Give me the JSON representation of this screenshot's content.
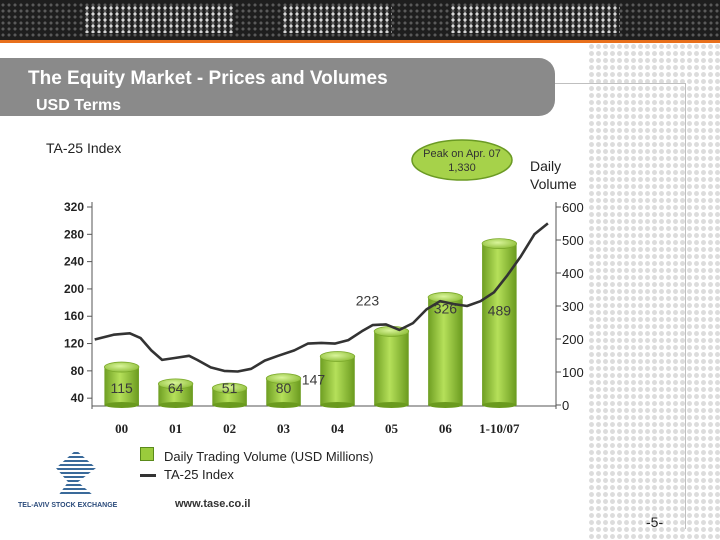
{
  "page": {
    "title": "The Equity Market - Prices and Volumes",
    "subtitle": "USD Terms",
    "website": "www.tase.co.il",
    "page_number": "-5-",
    "logo_text": "TEL-AVIV STOCK EXCHANGE"
  },
  "colors": {
    "bar": "#9acb3c",
    "line": "#333333",
    "title_bar": "#8a8a8a",
    "accent": "#e8701c"
  },
  "chart_data": {
    "type": "bar",
    "title": "The Equity Market - Prices and Volumes",
    "categories": [
      "00",
      "01",
      "02",
      "03",
      "04",
      "05",
      "06",
      "1-10/07"
    ],
    "series": [
      {
        "name": "Daily Trading Volume (USD Millions)",
        "axis": "right",
        "kind": "bar",
        "values": [
          115,
          64,
          51,
          80,
          147,
          223,
          326,
          489
        ]
      },
      {
        "name": "TA-25  Index",
        "axis": "left",
        "kind": "line",
        "points": [
          [
            0,
            126
          ],
          [
            0.35,
            133
          ],
          [
            0.65,
            135
          ],
          [
            0.85,
            128
          ],
          [
            1.05,
            110
          ],
          [
            1.25,
            96
          ],
          [
            1.5,
            99
          ],
          [
            1.75,
            102
          ],
          [
            1.9,
            96
          ],
          [
            2.15,
            85
          ],
          [
            2.4,
            80
          ],
          [
            2.65,
            79
          ],
          [
            2.9,
            83
          ],
          [
            3.15,
            95
          ],
          [
            3.4,
            102
          ],
          [
            3.7,
            110
          ],
          [
            3.95,
            120
          ],
          [
            4.2,
            121
          ],
          [
            4.45,
            120
          ],
          [
            4.7,
            125
          ],
          [
            4.95,
            138
          ],
          [
            5.15,
            147
          ],
          [
            5.4,
            148
          ],
          [
            5.65,
            140
          ],
          [
            5.9,
            150
          ],
          [
            6.15,
            170
          ],
          [
            6.4,
            182
          ],
          [
            6.65,
            178
          ],
          [
            6.9,
            175
          ],
          [
            7.15,
            182
          ],
          [
            7.4,
            195
          ],
          [
            7.65,
            220
          ],
          [
            7.9,
            248
          ],
          [
            8.15,
            280
          ],
          [
            8.4,
            296
          ]
        ]
      }
    ],
    "left_axis": {
      "label": "TA-25 Index",
      "ticks": [
        "320",
        "280",
        "240",
        "200",
        "160",
        "120",
        "80",
        "40"
      ],
      "ylim": [
        30,
        320
      ]
    },
    "right_axis": {
      "label_line1": "Daily",
      "label_line2": "Volume",
      "ticks": [
        "600",
        "500",
        "400",
        "300",
        "200",
        "100",
        "0"
      ],
      "ylim": [
        0,
        600
      ]
    },
    "annotation": {
      "line1": "Peak on Apr. 07",
      "line2": "1,330"
    },
    "legend": [
      "Daily Trading Volume (USD Millions)",
      "TA-25  Index"
    ]
  }
}
